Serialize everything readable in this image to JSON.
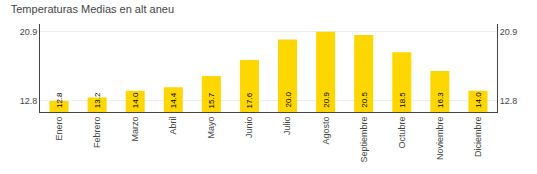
{
  "chart_data": {
    "type": "bar",
    "title": "Temperaturas Medias en alt aneu",
    "categories": [
      "Enero",
      "Febrero",
      "Marzo",
      "Abril",
      "Mayo",
      "Junio",
      "Julio",
      "Agosto",
      "Septiembre",
      "Octubre",
      "Noviembre",
      "Diciembre"
    ],
    "values": [
      12.8,
      13.2,
      14.0,
      14.4,
      15.7,
      17.6,
      20.0,
      20.9,
      20.5,
      18.5,
      16.3,
      14.0
    ],
    "value_labels": [
      "12.8",
      "13.2",
      "14.0",
      "14.4",
      "15.7",
      "17.6",
      "20.0",
      "20.9",
      "20.5",
      "18.5",
      "16.3",
      "14.0"
    ],
    "data_labels": true,
    "color": "#FFD700",
    "ylim": [
      11.5,
      21.8
    ],
    "yticks": [
      12.8,
      20.9
    ],
    "y2lim": [
      11.5,
      21.8
    ],
    "y2ticks": [
      12.8,
      20.9
    ],
    "grid": true
  }
}
